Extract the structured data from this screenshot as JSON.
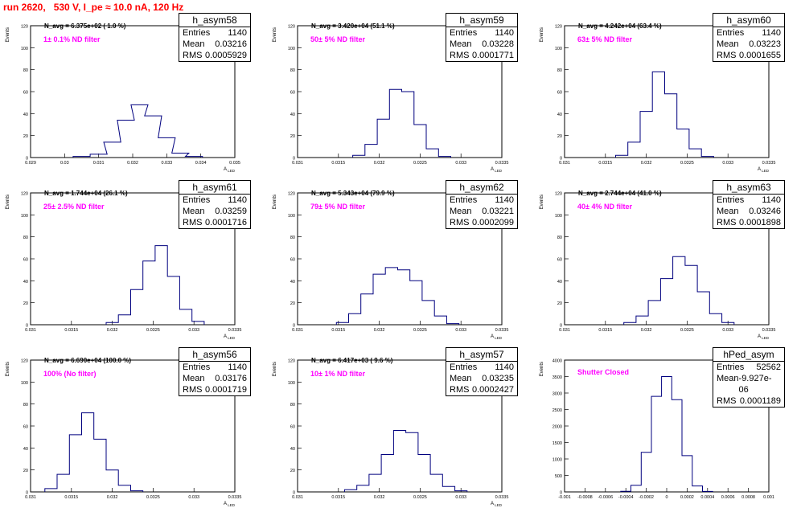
{
  "header": {
    "title": "run 2620,   530 V, I_pe ≈ 10.0 nA, 120 Hz"
  },
  "colors": {
    "histogram_line": "#00007f",
    "title": "#ff0000",
    "filter_text": "#ff00ff",
    "stat_border": "#000000"
  },
  "chart_data": [
    {
      "type": "histogram",
      "name": "h_asym58",
      "ylabel": "Events",
      "xlabel": "A_LED",
      "stats": {
        "entries": "1140",
        "mean": "0.03216",
        "rms": "0.0005929"
      },
      "navg_text": "N_avg = 6.375e+02 ( 1.0 %)",
      "filter_text": "1± 0.1% ND filter",
      "xlim": [
        0.029,
        0.035
      ],
      "ylim": [
        0,
        120
      ],
      "xticks": [
        "0.029",
        "0.03",
        "0.031",
        "0.032",
        "0.033",
        "0.034",
        "0.035"
      ],
      "yticks": [
        "0",
        "20",
        "40",
        "60",
        "80",
        "100",
        "120"
      ],
      "x": [
        0.0305,
        0.031,
        0.0314,
        0.0318,
        0.0322,
        0.0326,
        0.033,
        0.0334,
        0.0338
      ],
      "values": [
        1,
        3,
        14,
        34,
        48,
        38,
        18,
        4,
        1
      ]
    },
    {
      "type": "histogram",
      "name": "h_asym59",
      "ylabel": "Events",
      "xlabel": "A_LED",
      "stats": {
        "entries": "1140",
        "mean": "0.03228",
        "rms": "0.0001771"
      },
      "navg_text": "N_avg = 3.420e+04 (51.1 %)",
      "filter_text": "50± 5% ND filter",
      "xlim": [
        0.031,
        0.0335
      ],
      "ylim": [
        0,
        120
      ],
      "xticks": [
        "0.031",
        "0.0315",
        "0.032",
        "0.0325",
        "0.033",
        "0.0335"
      ],
      "yticks": [
        "0",
        "20",
        "40",
        "60",
        "80",
        "100",
        "120"
      ],
      "x": [
        0.03175,
        0.0319,
        0.03205,
        0.0322,
        0.03235,
        0.0325,
        0.03265,
        0.0328
      ],
      "values": [
        2,
        12,
        35,
        62,
        60,
        30,
        8,
        1
      ]
    },
    {
      "type": "histogram",
      "name": "h_asym60",
      "ylabel": "Events",
      "xlabel": "A_LED",
      "stats": {
        "entries": "1140",
        "mean": "0.03223",
        "rms": "0.0001655"
      },
      "navg_text": "N_avg = 4.242e+04 (63.4 %)",
      "filter_text": "63± 5% ND filter",
      "xlim": [
        0.031,
        0.0335
      ],
      "ylim": [
        0,
        120
      ],
      "xticks": [
        "0.031",
        "0.0315",
        "0.032",
        "0.0325",
        "0.033",
        "0.0335"
      ],
      "yticks": [
        "0",
        "20",
        "40",
        "60",
        "80",
        "100",
        "120"
      ],
      "x": [
        0.0317,
        0.03185,
        0.032,
        0.03215,
        0.0323,
        0.03245,
        0.0326,
        0.03275
      ],
      "values": [
        2,
        14,
        42,
        78,
        58,
        26,
        8,
        1
      ]
    },
    {
      "type": "histogram",
      "name": "h_asym61",
      "ylabel": "Events",
      "xlabel": "A_LED",
      "stats": {
        "entries": "1140",
        "mean": "0.03259",
        "rms": "0.0001716"
      },
      "navg_text": "N_avg = 1.744e+04 (26.1 %)",
      "filter_text": "25± 2.5% ND filter",
      "xlim": [
        0.031,
        0.0335
      ],
      "ylim": [
        0,
        120
      ],
      "xticks": [
        "0.031",
        "0.0315",
        "0.032",
        "0.0325",
        "0.033",
        "0.0335"
      ],
      "yticks": [
        "0",
        "20",
        "40",
        "60",
        "80",
        "100",
        "120"
      ],
      "x": [
        0.032,
        0.03215,
        0.0323,
        0.03245,
        0.0326,
        0.03275,
        0.0329,
        0.03305
      ],
      "values": [
        2,
        9,
        32,
        58,
        72,
        44,
        14,
        3
      ]
    },
    {
      "type": "histogram",
      "name": "h_asym62",
      "ylabel": "Events",
      "xlabel": "A_LED",
      "stats": {
        "entries": "1140",
        "mean": "0.03221",
        "rms": "0.0002099"
      },
      "navg_text": "N_avg = 5.343e+04 (79.9 %)",
      "filter_text": "79± 5% ND filter",
      "xlim": [
        0.031,
        0.0335
      ],
      "ylim": [
        0,
        120
      ],
      "xticks": [
        "0.031",
        "0.0315",
        "0.032",
        "0.0325",
        "0.033",
        "0.0335"
      ],
      "yticks": [
        "0",
        "20",
        "40",
        "60",
        "80",
        "100",
        "120"
      ],
      "x": [
        0.03155,
        0.0317,
        0.03185,
        0.032,
        0.03215,
        0.0323,
        0.03245,
        0.0326,
        0.03275,
        0.0329
      ],
      "values": [
        2,
        10,
        28,
        46,
        52,
        50,
        40,
        22,
        8,
        1
      ]
    },
    {
      "type": "histogram",
      "name": "h_asym63",
      "ylabel": "Events",
      "xlabel": "A_LED",
      "stats": {
        "entries": "1140",
        "mean": "0.03246",
        "rms": "0.0001898"
      },
      "navg_text": "N_avg = 2.744e+04 (41.0 %)",
      "filter_text": "40± 4% ND filter",
      "xlim": [
        0.031,
        0.0335
      ],
      "ylim": [
        0,
        120
      ],
      "xticks": [
        "0.031",
        "0.0315",
        "0.032",
        "0.0325",
        "0.033",
        "0.0335"
      ],
      "yticks": [
        "0",
        "20",
        "40",
        "60",
        "80",
        "100",
        "120"
      ],
      "x": [
        0.0318,
        0.03195,
        0.0321,
        0.03225,
        0.0324,
        0.03255,
        0.0327,
        0.03285,
        0.033
      ],
      "values": [
        2,
        8,
        22,
        42,
        62,
        54,
        30,
        10,
        2
      ]
    },
    {
      "type": "histogram",
      "name": "h_asym56",
      "ylabel": "Events",
      "xlabel": "A_LED",
      "stats": {
        "entries": "1140",
        "mean": "0.03176",
        "rms": "0.0001719"
      },
      "navg_text": "N_avg = 6.690e+04 (100.0 %)",
      "filter_text": "100% (No filter)",
      "xlim": [
        0.031,
        0.0335
      ],
      "ylim": [
        0,
        120
      ],
      "xticks": [
        "0.031",
        "0.0315",
        "0.032",
        "0.0325",
        "0.033",
        "0.0335"
      ],
      "yticks": [
        "0",
        "20",
        "40",
        "60",
        "80",
        "100",
        "120"
      ],
      "x": [
        0.03125,
        0.0314,
        0.03155,
        0.0317,
        0.03185,
        0.032,
        0.03215,
        0.0323
      ],
      "values": [
        3,
        16,
        52,
        72,
        48,
        20,
        6,
        1
      ]
    },
    {
      "type": "histogram",
      "name": "h_asym57",
      "ylabel": "Events",
      "xlabel": "A_LED",
      "stats": {
        "entries": "1140",
        "mean": "0.03235",
        "rms": "0.0002427"
      },
      "navg_text": "N_avg = 6.417e+03 ( 9.6 %)",
      "filter_text": "10± 1% ND filter",
      "xlim": [
        0.031,
        0.0335
      ],
      "ylim": [
        0,
        120
      ],
      "xticks": [
        "0.031",
        "0.0315",
        "0.032",
        "0.0325",
        "0.033",
        "0.0335"
      ],
      "yticks": [
        "0",
        "20",
        "40",
        "60",
        "80",
        "100",
        "120"
      ],
      "x": [
        0.03165,
        0.0318,
        0.03195,
        0.0321,
        0.03225,
        0.0324,
        0.03255,
        0.0327,
        0.03285,
        0.033
      ],
      "values": [
        2,
        6,
        16,
        34,
        56,
        54,
        34,
        16,
        5,
        1
      ]
    },
    {
      "type": "histogram",
      "name": "hPed_asym",
      "ylabel": "Events",
      "xlabel": "",
      "stats": {
        "entries": "52562",
        "mean": "-9.927e-06",
        "rms": "0.0001189"
      },
      "navg_text": "",
      "filter_text": "Shutter Closed",
      "xlim": [
        -0.001,
        0.001
      ],
      "ylim": [
        0,
        4000
      ],
      "xticks": [
        "-0.001",
        "-0.0008",
        "-0.0006",
        "-0.0004",
        "-0.0002",
        "0",
        "0.0002",
        "0.0004",
        "0.0006",
        "0.0008",
        "0.001"
      ],
      "yticks": [
        "0",
        "500",
        "1000",
        "1500",
        "2000",
        "2500",
        "3000",
        "3500",
        "4000"
      ],
      "x": [
        -0.0004,
        -0.0003,
        -0.0002,
        -0.0001,
        0,
        0.0001,
        0.0002,
        0.0003,
        0.0004
      ],
      "values": [
        20,
        200,
        1200,
        2900,
        3500,
        2800,
        1100,
        180,
        15
      ]
    }
  ]
}
